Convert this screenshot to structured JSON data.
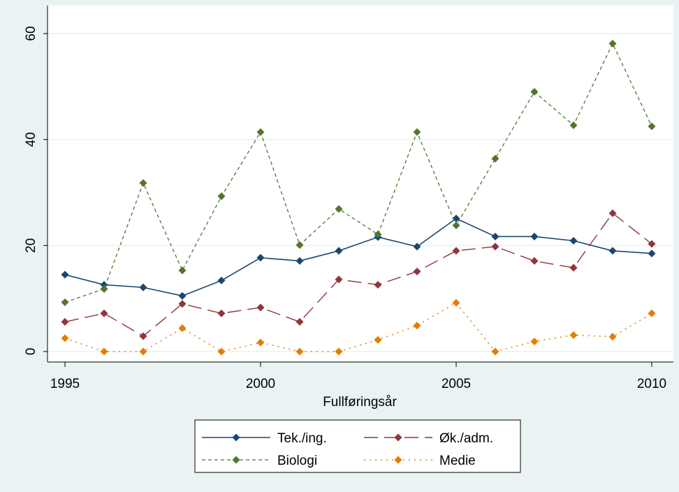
{
  "chart_data": {
    "type": "line",
    "title": "",
    "xlabel": "Fullføringsår",
    "ylabel": "",
    "xlim": [
      1995,
      2010
    ],
    "ylim": [
      0,
      60
    ],
    "x_ticks": [
      "1995",
      "2000",
      "2005",
      "2010"
    ],
    "y_ticks": [
      "0",
      "20",
      "40",
      "60"
    ],
    "grid": "horizontal",
    "legend_placement": "bottom",
    "x": [
      1995,
      1996,
      1997,
      1998,
      1999,
      2000,
      2001,
      2002,
      2003,
      2004,
      2005,
      2006,
      2007,
      2008,
      2009,
      2010
    ],
    "series": [
      {
        "name": "Tek./ing.",
        "color": "#1a476f",
        "line_style": "solid",
        "values": [
          14.5,
          12.6,
          12.1,
          10.5,
          13.4,
          17.7,
          17.1,
          19.0,
          21.6,
          19.8,
          25.1,
          21.7,
          21.7,
          20.9,
          19.0,
          18.5
        ]
      },
      {
        "name": "Øk./adm.",
        "color": "#90353b",
        "line_style": "dashed",
        "values": [
          5.6,
          7.2,
          2.9,
          9.0,
          7.2,
          8.3,
          5.6,
          13.6,
          12.6,
          15.1,
          19.0,
          19.8,
          17.1,
          15.8,
          26.1,
          20.3
        ]
      },
      {
        "name": "Biologi",
        "color": "#55752f",
        "line_style": "short-dash",
        "values": [
          9.3,
          11.8,
          31.8,
          15.3,
          29.3,
          41.4,
          20.1,
          26.9,
          22.1,
          41.4,
          23.8,
          36.4,
          49.0,
          42.7,
          58.1,
          42.5
        ]
      },
      {
        "name": "Medie",
        "color": "#e37e00",
        "line_style": "dotted",
        "values": [
          2.5,
          0.0,
          0.0,
          4.4,
          0.0,
          1.7,
          0.0,
          0.0,
          2.2,
          4.9,
          9.2,
          0.0,
          1.9,
          3.1,
          2.8,
          7.2
        ]
      }
    ]
  }
}
